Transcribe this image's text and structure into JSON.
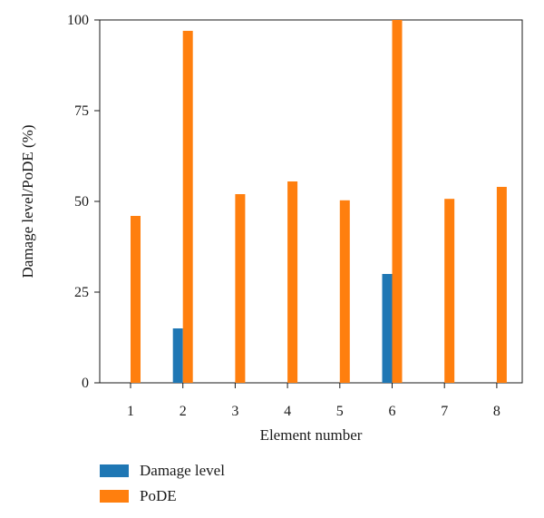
{
  "chart_data": {
    "type": "bar",
    "categories": [
      "1",
      "2",
      "3",
      "4",
      "5",
      "6",
      "7",
      "8"
    ],
    "series": [
      {
        "name": "Damage level",
        "color": "#1f77b4",
        "values": [
          0,
          15,
          0,
          0,
          0,
          30,
          0,
          0
        ]
      },
      {
        "name": "PoDE",
        "color": "#ff7f0e",
        "values": [
          46,
          97,
          52,
          55.5,
          50.3,
          100,
          50.7,
          54
        ]
      }
    ],
    "xlabel": "Element number",
    "ylabel": "Damage level/PoDE (%)",
    "ylim": [
      0,
      100
    ],
    "yticks": [
      0,
      25,
      50,
      75,
      100
    ],
    "grid": false,
    "legend_position": "bottom-left"
  }
}
